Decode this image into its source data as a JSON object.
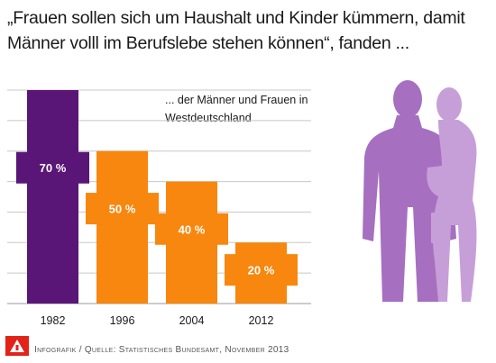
{
  "title": "„Frauen sollen sich um Haushalt und Kinder kümmern, damit Männer volll im Berufslebe stehen können“, fanden ...",
  "subtitle": "... der Männer und Frauen in Westdeutschland",
  "source": "Infografik / Quelle: Statistisches Bundesamt, November 2013",
  "colors": {
    "first_bar": "#5a1677",
    "bars": "#f7870f",
    "silhouette_man": "#a66fc0",
    "silhouette_woman": "#c79fd8",
    "grid": "#c8c8c8",
    "label_text": "#ffffff",
    "logo": "#e2231a"
  },
  "icons": [
    "man-silhouette-icon",
    "woman-silhouette-icon",
    "logo-icon"
  ],
  "chart_data": {
    "type": "bar",
    "categories": [
      "1982",
      "1996",
      "2004",
      "2012"
    ],
    "values": [
      70,
      50,
      40,
      20
    ],
    "value_labels": [
      "70 %",
      "50 %",
      "40 %",
      "20 %"
    ],
    "ylim": [
      0,
      70
    ],
    "grid": true,
    "legend": "none"
  }
}
